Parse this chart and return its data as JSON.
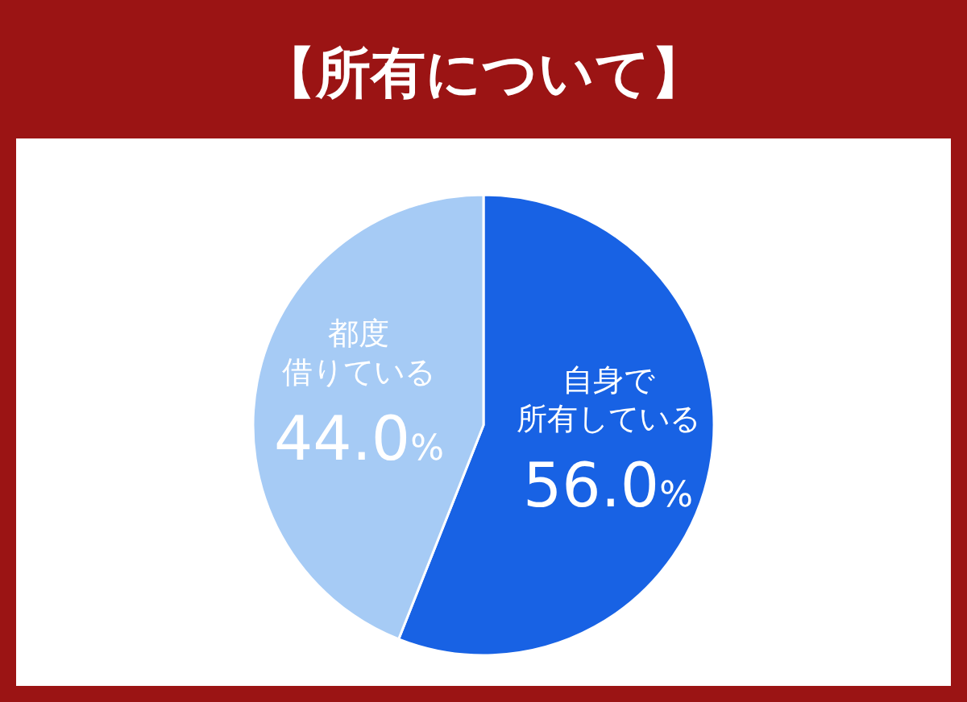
{
  "chart_data": {
    "type": "pie",
    "title": "【所有について】",
    "categories": [
      "自身で所有している",
      "都度借りている"
    ],
    "values": [
      56.0,
      44.0
    ],
    "value_labels": [
      "56.0%",
      "44.0%"
    ],
    "colors": [
      "#1862e4",
      "#a6cbf5"
    ]
  }
}
